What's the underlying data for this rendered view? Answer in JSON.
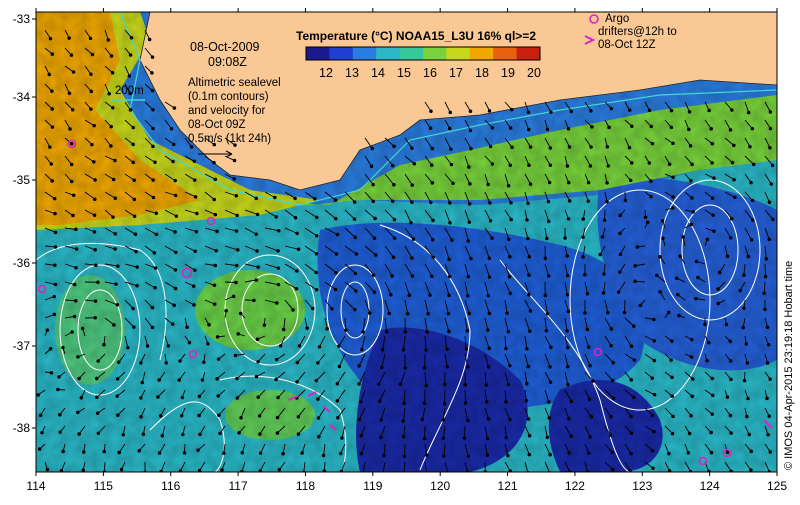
{
  "map": {
    "date": "08-Oct-2009",
    "time": "09:08Z",
    "legend_title": "Temperature (°C) NOAA15_L3U 16% ql>=2",
    "colorbar_ticks": [
      "12",
      "13",
      "14",
      "15",
      "16",
      "17",
      "18",
      "19",
      "20"
    ],
    "colorbar_colors": [
      "#1a1a8c",
      "#1f3fd0",
      "#2a7de0",
      "#2ab8c8",
      "#34c89a",
      "#78d23c",
      "#c8d81c",
      "#f0a800",
      "#e86010",
      "#c82010"
    ],
    "contour_label": "200m",
    "altimetry_note": [
      "Altimetric sealevel",
      "(0.1m contours)",
      "and velocity for",
      "08-Oct 09Z",
      "0.5m/s (1kt 24h)"
    ],
    "argo_label": [
      "Argo",
      "drifters@12h to",
      "08-Oct 12Z"
    ],
    "credit": "© IMOS 04-Apr-2015 23:19:18 Hobart time",
    "x_ticks": [
      "114",
      "115",
      "116",
      "117",
      "118",
      "119",
      "120",
      "121",
      "122",
      "123",
      "124",
      "125"
    ],
    "y_ticks": [
      "-33",
      "-34",
      "-35",
      "-36",
      "-37",
      "-38"
    ],
    "colors": {
      "land": "#f9c895",
      "ocean_deep": "#1a2aa8",
      "argo": "#e020c8",
      "contour": "#ffffff",
      "isobath": "#40d8d0"
    }
  }
}
